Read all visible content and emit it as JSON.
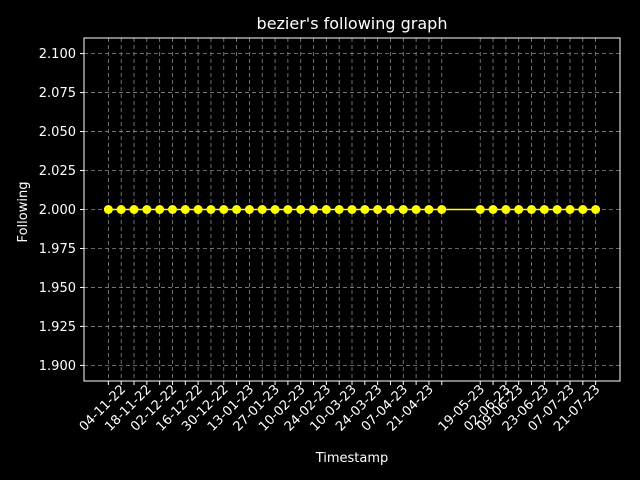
{
  "chart_data": {
    "type": "line",
    "title": "bezier's following graph",
    "xlabel": "Timestamp",
    "ylabel": "Following",
    "ylim": [
      1.89,
      2.11
    ],
    "y_ticks": [
      "1.900",
      "1.925",
      "1.950",
      "1.975",
      "2.000",
      "2.025",
      "2.050",
      "2.075",
      "2.100"
    ],
    "x_tick_labels": [
      "04-11-22",
      "18-11-22",
      "02-12-22",
      "16-12-22",
      "30-12-22",
      "13-01-23",
      "27-01-23",
      "10-02-23",
      "24-02-23",
      "10-03-23",
      "24-03-23",
      "07-04-23",
      "21-04-23",
      "19-05-23",
      "02-06-23",
      "09-06-23",
      "23-06-23",
      "07-07-23",
      "21-07-23"
    ],
    "grid": true,
    "colors": {
      "background": "#000000",
      "series": "#ffff00",
      "grid": "#888888",
      "text": "#ffffff"
    },
    "x": [
      "28-10-22",
      "04-11-22",
      "11-11-22",
      "18-11-22",
      "25-11-22",
      "02-12-22",
      "09-12-22",
      "16-12-22",
      "23-12-22",
      "30-12-22",
      "06-01-23",
      "13-01-23",
      "20-01-23",
      "27-01-23",
      "03-02-23",
      "10-02-23",
      "17-02-23",
      "24-02-23",
      "03-03-23",
      "10-03-23",
      "17-03-23",
      "24-03-23",
      "31-03-23",
      "07-04-23",
      "14-04-23",
      "21-04-23",
      "28-04-23",
      "19-05-23",
      "26-05-23",
      "02-06-23",
      "09-06-23",
      "16-06-23",
      "23-06-23",
      "30-06-23",
      "07-07-23",
      "14-07-23",
      "21-07-23"
    ],
    "series": [
      {
        "values": [
          2,
          2,
          2,
          2,
          2,
          2,
          2,
          2,
          2,
          2,
          2,
          2,
          2,
          2,
          2,
          2,
          2,
          2,
          2,
          2,
          2,
          2,
          2,
          2,
          2,
          2,
          2,
          2,
          2,
          2,
          2,
          2,
          2,
          2,
          2,
          2,
          2
        ]
      }
    ]
  }
}
